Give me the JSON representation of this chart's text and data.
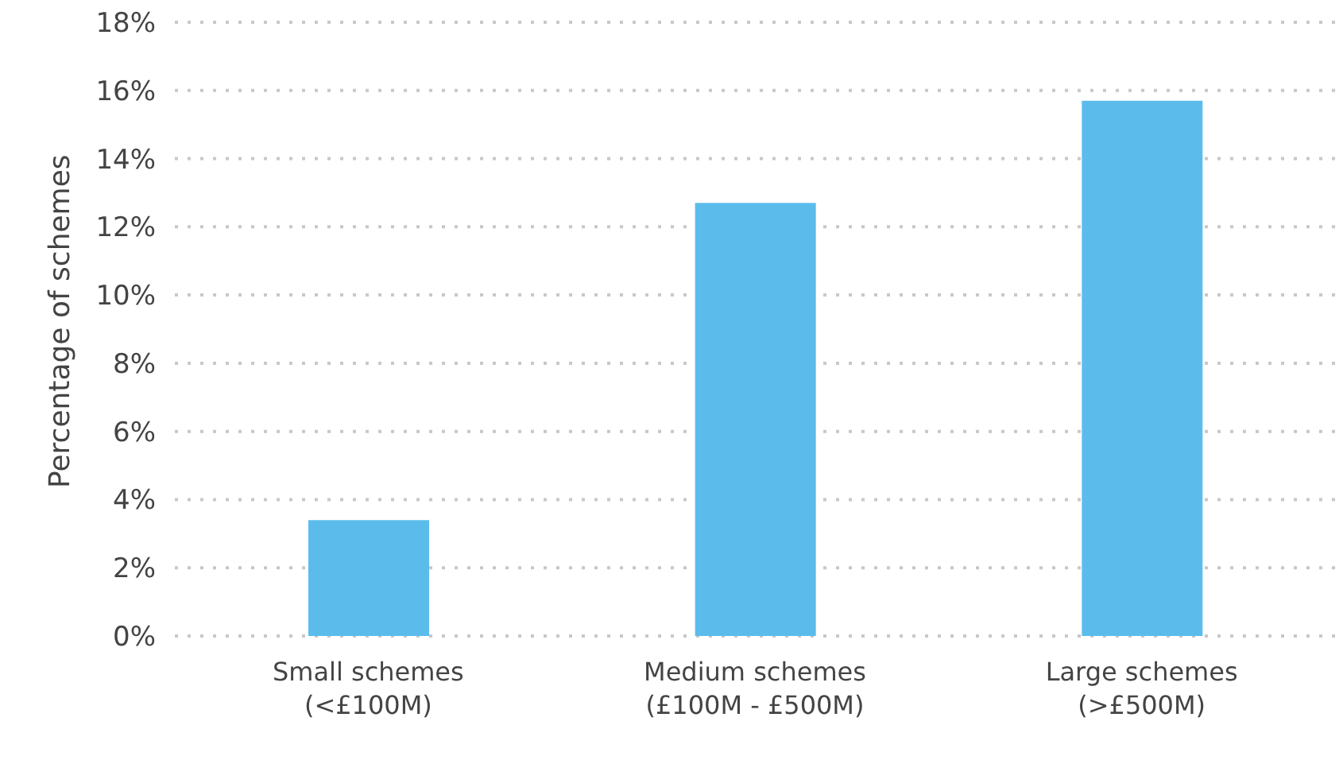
{
  "chart_data": {
    "type": "bar",
    "ylabel": "Percentage of schemes",
    "categories": [
      "Small schemes\n(<£100M)",
      "Medium schemes\n(£100M - £500M)",
      "Large schemes\n(>£500M)"
    ],
    "values": [
      3.4,
      12.7,
      15.7
    ],
    "color": "#5bbcec",
    "ylim": [
      0,
      18
    ],
    "yticks": [
      {
        "value": 0,
        "label": "0%"
      },
      {
        "value": 2,
        "label": "2%"
      },
      {
        "value": 4,
        "label": "4%"
      },
      {
        "value": 6,
        "label": "6%"
      },
      {
        "value": 8,
        "label": "8%"
      },
      {
        "value": 10,
        "label": "10%"
      },
      {
        "value": 12,
        "label": "12%"
      },
      {
        "value": 14,
        "label": "14%"
      },
      {
        "value": 16,
        "label": "16%"
      },
      {
        "value": 18,
        "label": "18%"
      }
    ],
    "grid": "y"
  }
}
